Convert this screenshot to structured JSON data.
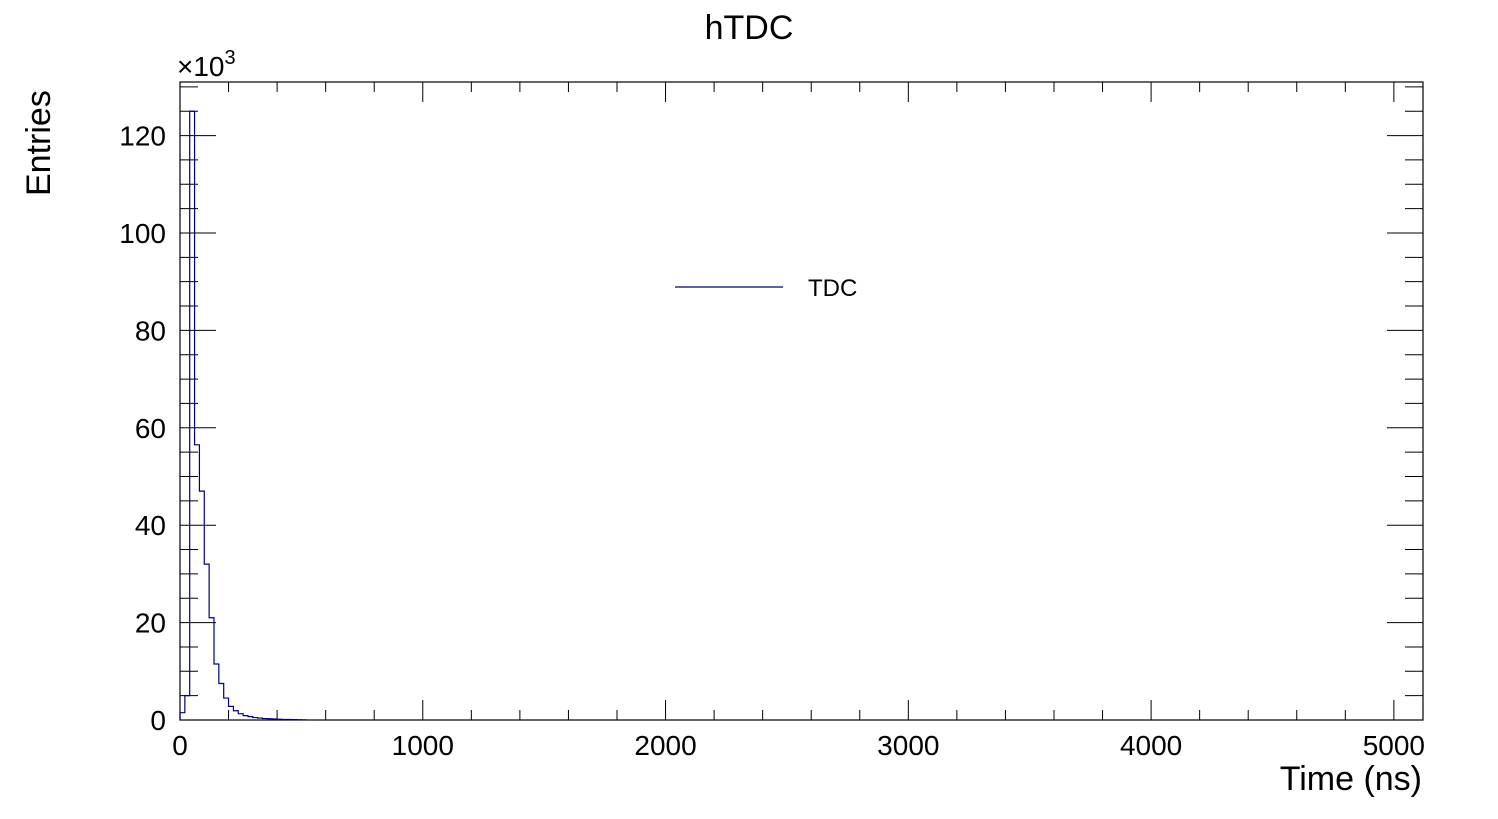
{
  "chart_data": {
    "type": "histogram",
    "title": "hTDC",
    "xlabel": "Time (ns)",
    "ylabel": "Entries",
    "y_multiplier_label": "×10",
    "y_multiplier_exponent": "3",
    "xlim": [
      0,
      5120
    ],
    "ylim": [
      0,
      131000
    ],
    "xticks": [
      0,
      1000,
      2000,
      3000,
      4000,
      5000
    ],
    "xtick_labels": [
      "0",
      "1000",
      "2000",
      "3000",
      "4000",
      "5000"
    ],
    "yticks": [
      0,
      20000,
      40000,
      60000,
      80000,
      100000,
      120000
    ],
    "ytick_labels": [
      "0",
      "20",
      "40",
      "60",
      "80",
      "100",
      "120"
    ],
    "bin_width": 20,
    "bin_edges_start": 0,
    "values": [
      1500,
      5000,
      125000,
      56500,
      47000,
      32000,
      21000,
      11500,
      7500,
      4500,
      2800,
      1900,
      1300,
      900,
      700,
      500,
      400,
      300,
      250,
      200,
      150,
      120,
      100,
      80,
      60,
      40
    ],
    "series": [
      {
        "name": "TDC",
        "color": "#000080"
      }
    ],
    "legend": {
      "entries": [
        "TDC"
      ],
      "placement": "top-center"
    },
    "grid": false
  }
}
